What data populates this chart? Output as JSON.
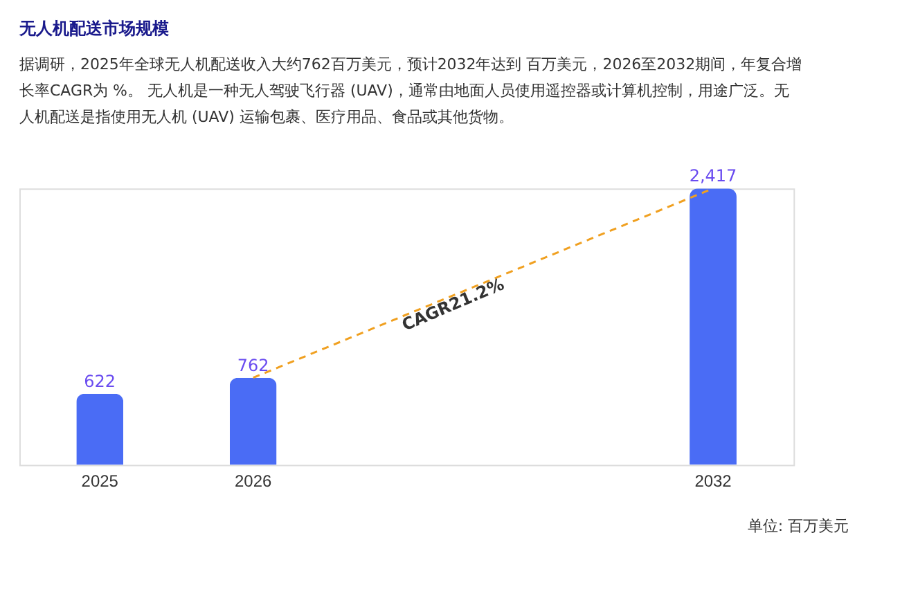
{
  "chart_data": {
    "type": "bar",
    "title": "无人机配送市场规模",
    "subtitle": "据调研，2025年全球无人机配送收入大约762百万美元，预计2032年达到 百万美元，2026至2032期间，年复合增长率CAGR为 %。 无人机是一种无人驾驶飞行器 (UAV)，通常由地面人员使用遥控器或计算机控制，用途广泛。无人机配送是指使用无人机 (UAV) 运输包裹、医疗用品、食品或其他货物。",
    "categories": [
      "2025",
      "2026",
      null,
      null,
      "2032"
    ],
    "values": [
      622,
      762,
      null,
      null,
      2417
    ],
    "value_labels": [
      "622",
      "762",
      null,
      null,
      "2,417"
    ],
    "color": "#4a6cf5",
    "annotations": [
      "CAGR21.2%",
      "单位: 百万美元"
    ],
    "grid": false
  }
}
